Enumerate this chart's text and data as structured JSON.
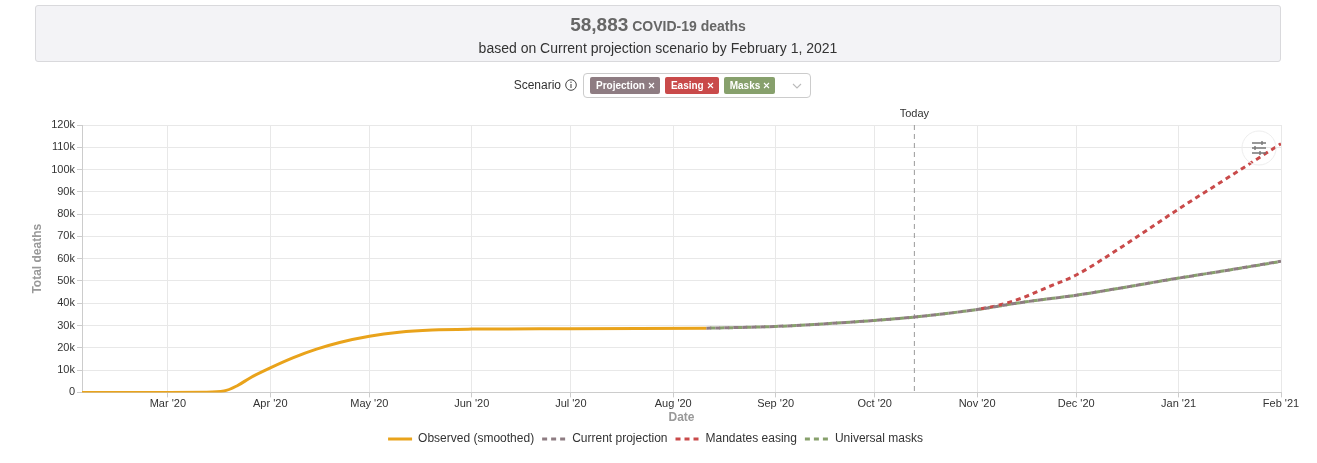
{
  "chart_data": {
    "type": "line",
    "title": "58,883 COVID-19 deaths",
    "subtitle": "based on Current projection scenario by February 1, 2021",
    "xlabel": "Date",
    "ylabel": "Total deaths",
    "annotations": [
      "Scenario",
      "Projection",
      "Easing",
      "Masks"
    ],
    "xlim": [
      "2020-02-04",
      "2021-02-01"
    ],
    "xticks": [
      {
        "value": "2020-03-01",
        "label": "Mar '20"
      },
      {
        "value": "2020-04-01",
        "label": "Apr '20"
      },
      {
        "value": "2020-05-01",
        "label": "May '20"
      },
      {
        "value": "2020-06-01",
        "label": "Jun '20"
      },
      {
        "value": "2020-07-01",
        "label": "Jul '20"
      },
      {
        "value": "2020-08-01",
        "label": "Aug '20"
      },
      {
        "value": "2020-09-01",
        "label": "Sep '20"
      },
      {
        "value": "2020-10-01",
        "label": "Oct '20"
      },
      {
        "value": "2020-11-01",
        "label": "Nov '20"
      },
      {
        "value": "2020-12-01",
        "label": "Dec '20"
      },
      {
        "value": "2021-01-01",
        "label": "Jan '21"
      },
      {
        "value": "2021-02-01",
        "label": "Feb '21"
      }
    ],
    "ylim": [
      0,
      120000
    ],
    "yticks": [
      0,
      {
        "value": 10000,
        "label": "10k"
      },
      {
        "value": 20000,
        "label": "20k"
      },
      {
        "value": 30000,
        "label": "30k"
      },
      {
        "value": 40000,
        "label": "40k"
      },
      {
        "value": 50000,
        "label": "50k"
      },
      {
        "value": 60000,
        "label": "60k"
      },
      {
        "value": 70000,
        "label": "70k"
      },
      {
        "value": 80000,
        "label": "80k"
      },
      {
        "value": 90000,
        "label": "90k"
      },
      {
        "value": 100000,
        "label": "100k"
      },
      {
        "value": 110000,
        "label": "110k"
      },
      {
        "value": 120000,
        "label": "120k"
      }
    ],
    "series": [
      {
        "name": "Observed (smoothed)",
        "color": "#e9a31b",
        "line_style": "solid",
        "x": [
          "2020-02-04",
          "2020-03-01",
          "2020-03-12",
          "2020-03-18",
          "2020-03-22",
          "2020-03-26",
          "2020-04-01",
          "2020-04-08",
          "2020-04-15",
          "2020-04-22",
          "2020-05-01",
          "2020-05-10",
          "2020-05-20",
          "2020-06-01",
          "2020-07-01",
          "2020-08-11"
        ],
        "values": [
          0,
          0,
          100,
          600,
          3000,
          6600,
          11000,
          15600,
          19400,
          22400,
          25200,
          27000,
          28000,
          28400,
          28600,
          28800
        ]
      },
      {
        "name": "Current projection",
        "color": "#8e7c82",
        "line_style": "dashed",
        "x": [
          "2020-08-11",
          "2020-09-01",
          "2020-09-15",
          "2020-10-01",
          "2020-10-13",
          "2020-11-01",
          "2020-11-15",
          "2020-12-01",
          "2020-12-15",
          "2021-01-01",
          "2021-01-15",
          "2021-02-01"
        ],
        "values": [
          28800,
          29600,
          30700,
          32300,
          33800,
          37200,
          40500,
          43600,
          47000,
          51300,
          54600,
          58900
        ]
      },
      {
        "name": "Mandates easing",
        "color": "#c94a4a",
        "line_style": "dashed",
        "x": [
          "2020-11-01",
          "2020-11-08",
          "2020-11-15",
          "2020-11-22",
          "2020-12-01",
          "2020-12-15",
          "2021-01-01",
          "2021-01-15",
          "2021-02-01"
        ],
        "values": [
          37200,
          39300,
          42600,
          47000,
          52700,
          65500,
          82300,
          95500,
          111600
        ]
      },
      {
        "name": "Universal masks",
        "color": "#87a06c",
        "line_style": "dashed",
        "x": [
          "2020-08-11",
          "2020-09-01",
          "2020-09-15",
          "2020-10-01",
          "2020-10-13",
          "2020-11-01",
          "2020-11-15",
          "2020-12-01",
          "2020-12-15",
          "2021-01-01",
          "2021-01-15",
          "2021-02-01"
        ],
        "values": [
          28800,
          29600,
          30700,
          32300,
          33800,
          37200,
          40500,
          43600,
          47000,
          51300,
          54600,
          58800
        ]
      }
    ],
    "ref_lines": [
      {
        "axis": "x",
        "value": "2020-10-13",
        "label": "Today",
        "color": "#999999",
        "line_style": "dashed"
      }
    ],
    "grid": true,
    "legend": "bottom",
    "marker": "none"
  }
}
